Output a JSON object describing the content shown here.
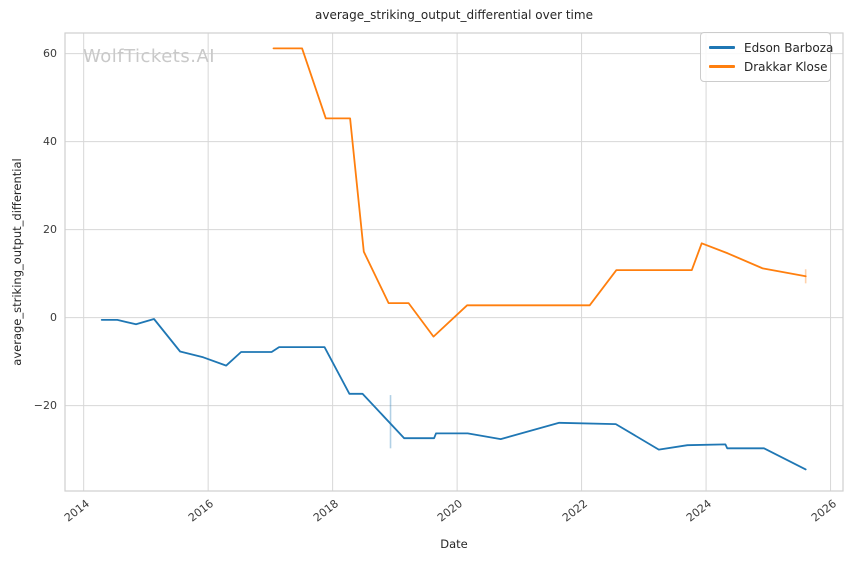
{
  "chart_data": {
    "type": "line",
    "title": "average_striking_output_differential over time",
    "xlabel": "Date",
    "ylabel": "average_striking_output_differential",
    "watermark": "WolfTickets.AI",
    "grid": true,
    "legend_position": "top-right",
    "xlim": [
      2013.7,
      2026.2
    ],
    "ylim": [
      -39.4,
      64.7
    ],
    "xticks": [
      2014,
      2016,
      2018,
      2020,
      2022,
      2024,
      2026
    ],
    "yticks": [
      -20,
      0,
      20,
      40,
      60
    ],
    "colors": {
      "background": "#ffffff",
      "text": "#262626",
      "tick": "#3b3b3b",
      "grid": "#d7d7d7",
      "spine": "#cfcfcf",
      "watermark": "#c9c9c9",
      "legend_border": "#cccccc"
    },
    "series": [
      {
        "name": "Edson Barboza",
        "color": "#1f77b4",
        "x": [
          2014.29,
          2014.54,
          2014.84,
          2015.13,
          2015.55,
          2015.92,
          2016.29,
          2016.53,
          2017.02,
          2017.14,
          2017.87,
          2018.27,
          2018.48,
          2019.15,
          2019.63,
          2019.66,
          2020.17,
          2020.7,
          2021.64,
          2022.55,
          2023.24,
          2023.7,
          2024.31,
          2024.34,
          2024.93,
          2025.6
        ],
        "y": [
          -0.5,
          -0.5,
          -1.5,
          -0.3,
          -7.7,
          -9.0,
          -10.9,
          -7.8,
          -7.8,
          -6.7,
          -6.7,
          -17.3,
          -17.3,
          -27.4,
          -27.4,
          -26.3,
          -26.3,
          -27.6,
          -23.9,
          -24.2,
          -30.0,
          -29.0,
          -28.8,
          -29.7,
          -29.7,
          -34.5
        ]
      },
      {
        "name": "Drakkar Klose",
        "color": "#ff7f0e",
        "x": [
          2017.05,
          2017.51,
          2017.89,
          2018.28,
          2018.5,
          2018.9,
          2019.22,
          2019.62,
          2020.16,
          2022.13,
          2022.56,
          2023.77,
          2023.93,
          2024.35,
          2024.91,
          2025.6
        ],
        "y": [
          61.2,
          61.2,
          45.3,
          45.3,
          15.0,
          3.3,
          3.3,
          -4.3,
          2.8,
          2.8,
          10.8,
          10.8,
          16.9,
          14.6,
          11.2,
          9.4
        ]
      }
    ],
    "error_bars": [
      {
        "series": "Edson Barboza",
        "x": 2018.93,
        "y_low": -29.7,
        "y_high": -17.6
      },
      {
        "series": "Drakkar Klose",
        "x": 2025.6,
        "y_low": 7.8,
        "y_high": 11.0
      }
    ]
  }
}
